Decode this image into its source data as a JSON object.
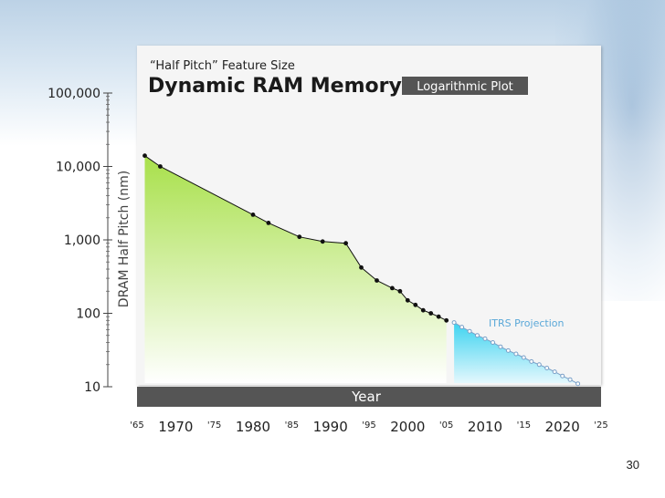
{
  "page_number": "30",
  "colors": {
    "panel": "#f5f5f5",
    "dark_bar": "#555555",
    "historic_fill_top": "#a8e04a",
    "historic_fill_bottom": "#ffffff",
    "projection_fill": "#3dd3f0",
    "line": "#111111",
    "projection_marker": "#7aa0c8",
    "projection_label": "#5aa8d8"
  },
  "chart_data": {
    "type": "line",
    "title": "Dynamic RAM Memory",
    "subtitle": "“Half Pitch” Feature Size",
    "scale_badge": "Logarithmic Plot",
    "xlabel": "Year",
    "ylabel": "DRAM Half Pitch (nm)",
    "y_scale": "log",
    "ylim": [
      10,
      100000
    ],
    "xlim": [
      1965,
      2025
    ],
    "y_ticks": [
      {
        "value": 100000,
        "label": "100,000"
      },
      {
        "value": 10000,
        "label": "10,000"
      },
      {
        "value": 1000,
        "label": "1,000"
      },
      {
        "value": 100,
        "label": "100"
      },
      {
        "value": 10,
        "label": "10"
      }
    ],
    "x_ticks": [
      {
        "value": 1965,
        "label": "'65",
        "major": false
      },
      {
        "value": 1970,
        "label": "1970",
        "major": true
      },
      {
        "value": 1975,
        "label": "'75",
        "major": false
      },
      {
        "value": 1980,
        "label": "1980",
        "major": true
      },
      {
        "value": 1985,
        "label": "'85",
        "major": false
      },
      {
        "value": 1990,
        "label": "1990",
        "major": true
      },
      {
        "value": 1995,
        "label": "'95",
        "major": false
      },
      {
        "value": 2000,
        "label": "2000",
        "major": true
      },
      {
        "value": 2005,
        "label": "'05",
        "major": false
      },
      {
        "value": 2010,
        "label": "2010",
        "major": true
      },
      {
        "value": 2015,
        "label": "'15",
        "major": false
      },
      {
        "value": 2020,
        "label": "2020",
        "major": true
      },
      {
        "value": 2025,
        "label": "'25",
        "major": false
      }
    ],
    "series": [
      {
        "values": [
          [
            1966,
            14000
          ],
          [
            1968,
            10000
          ],
          [
            1980,
            2200
          ],
          [
            1982,
            1700
          ],
          [
            1986,
            1100
          ],
          [
            1989,
            950
          ],
          [
            1992,
            900
          ],
          [
            1994,
            420
          ],
          [
            1996,
            280
          ],
          [
            1998,
            220
          ],
          [
            1999,
            200
          ],
          [
            2000,
            150
          ],
          [
            2001,
            130
          ],
          [
            2002,
            110
          ],
          [
            2003,
            100
          ],
          [
            2004,
            90
          ],
          [
            2005,
            80
          ]
        ]
      },
      {
        "name": "ITRS Projection",
        "values": [
          [
            2006,
            75
          ],
          [
            2007,
            65
          ],
          [
            2008,
            57
          ],
          [
            2009,
            50
          ],
          [
            2010,
            45
          ],
          [
            2011,
            40
          ],
          [
            2012,
            35
          ],
          [
            2013,
            31
          ],
          [
            2014,
            28
          ],
          [
            2015,
            25
          ],
          [
            2016,
            22
          ],
          [
            2017,
            20
          ],
          [
            2018,
            18
          ],
          [
            2019,
            16
          ],
          [
            2020,
            14
          ],
          [
            2021,
            12.5
          ],
          [
            2022,
            11
          ]
        ]
      }
    ]
  }
}
